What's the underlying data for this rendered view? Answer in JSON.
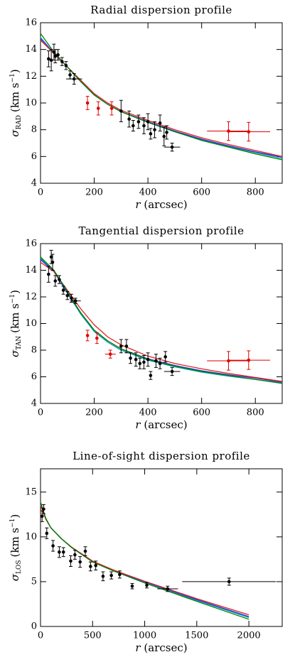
{
  "chart_data": [
    {
      "type": "scatter",
      "title": "Radial dispersion profile",
      "xlabel": {
        "symbol": "r",
        "unit": "(arcsec)"
      },
      "ylabel": {
        "symbol": "σ",
        "subscript": "RAD",
        "unit": "(km s",
        "exponent": "−1",
        "close": ")"
      },
      "xlim": [
        0,
        900
      ],
      "ylim": [
        4,
        16
      ],
      "xticks": [
        0,
        200,
        400,
        600,
        800
      ],
      "yticks": [
        4,
        6,
        8,
        10,
        12,
        14,
        16
      ],
      "series": [
        {
          "kind": "errorbar",
          "color": "#000000",
          "x": [
            30,
            40,
            50,
            55,
            65,
            80,
            95,
            110,
            125,
            300,
            330,
            345,
            365,
            385,
            400,
            410,
            425,
            445,
            460,
            470,
            490
          ],
          "values": [
            13.3,
            13.2,
            13.8,
            13.5,
            13.6,
            13.1,
            12.8,
            12.1,
            11.8,
            9.4,
            8.8,
            8.3,
            8.6,
            8.3,
            8.6,
            7.7,
            8.0,
            8.5,
            7.5,
            7.8,
            6.7
          ],
          "errors": [
            0.6,
            0.8,
            0.6,
            0.5,
            0.4,
            0.3,
            0.3,
            0.3,
            0.4,
            0.8,
            0.6,
            0.4,
            0.5,
            0.6,
            0.6,
            0.4,
            0.6,
            0.6,
            0.7,
            0.5,
            0.3
          ],
          "xerrors": [
            null,
            null,
            null,
            null,
            null,
            null,
            null,
            null,
            30,
            null,
            null,
            null,
            null,
            null,
            null,
            null,
            null,
            null,
            null,
            null,
            30
          ]
        },
        {
          "kind": "errorbar",
          "color": "#e00000",
          "x": [
            175,
            215,
            265,
            700,
            775
          ],
          "values": [
            10.0,
            9.6,
            9.6,
            7.9,
            7.85
          ],
          "errors": [
            0.5,
            0.5,
            0.5,
            0.7,
            0.7
          ],
          "xerrors": [
            null,
            null,
            null,
            80,
            80
          ]
        },
        {
          "kind": "line",
          "color": "#00a0b0",
          "x": [
            0,
            25,
            50,
            100,
            150,
            200,
            250,
            300,
            400,
            500,
            600,
            700,
            800,
            900
          ],
          "values": [
            14.9,
            14.3,
            13.7,
            12.7,
            11.6,
            10.6,
            9.9,
            9.35,
            8.55,
            7.85,
            7.25,
            6.75,
            6.3,
            5.85
          ]
        },
        {
          "kind": "line",
          "color": "#3030e0",
          "x": [
            0,
            25,
            50,
            100,
            150,
            200,
            250,
            300,
            400,
            500,
            600,
            700,
            800,
            900
          ],
          "values": [
            14.8,
            14.3,
            13.7,
            12.7,
            11.6,
            10.6,
            9.9,
            9.35,
            8.6,
            7.9,
            7.3,
            6.8,
            6.35,
            5.95
          ]
        },
        {
          "kind": "line",
          "color": "#e02020",
          "x": [
            0,
            25,
            50,
            100,
            150,
            200,
            250,
            300,
            400,
            500,
            600,
            700,
            800,
            900
          ],
          "values": [
            14.7,
            14.2,
            13.7,
            12.7,
            11.7,
            10.7,
            10.0,
            9.45,
            8.7,
            8.0,
            7.4,
            6.9,
            6.45,
            6.0
          ]
        },
        {
          "kind": "line",
          "color": "#008000",
          "x": [
            0,
            25,
            50,
            100,
            150,
            200,
            250,
            300,
            400,
            500,
            600,
            700,
            800,
            900
          ],
          "values": [
            15.2,
            14.5,
            13.8,
            12.7,
            11.6,
            10.6,
            9.9,
            9.35,
            8.55,
            7.85,
            7.2,
            6.7,
            6.2,
            5.75
          ]
        }
      ]
    },
    {
      "type": "scatter",
      "title": "Tangential dispersion profile",
      "xlabel": {
        "symbol": "r",
        "unit": "(arcsec)"
      },
      "ylabel": {
        "symbol": "σ",
        "subscript": "TAN",
        "unit": "(km s",
        "exponent": "−1",
        "close": ")"
      },
      "xlim": [
        0,
        900
      ],
      "ylim": [
        4,
        16
      ],
      "xticks": [
        0,
        200,
        400,
        600,
        800
      ],
      "yticks": [
        4,
        6,
        8,
        10,
        12,
        14,
        16
      ],
      "series": [
        {
          "kind": "errorbar",
          "color": "#000000",
          "x": [
            30,
            40,
            45,
            55,
            70,
            85,
            100,
            115,
            130,
            300,
            320,
            335,
            355,
            370,
            385,
            400,
            410,
            430,
            445,
            465,
            490
          ],
          "values": [
            13.7,
            15.0,
            14.6,
            13.2,
            13.3,
            12.5,
            12.1,
            11.9,
            11.7,
            8.3,
            8.3,
            7.4,
            7.3,
            7.0,
            7.1,
            7.3,
            6.1,
            7.2,
            7.0,
            7.5,
            6.4
          ],
          "errors": [
            0.6,
            0.5,
            0.6,
            0.4,
            0.3,
            0.3,
            0.3,
            0.3,
            0.2,
            0.5,
            0.5,
            0.4,
            0.5,
            0.4,
            0.5,
            0.5,
            0.3,
            0.5,
            0.4,
            0.4,
            0.3
          ],
          "xerrors": [
            null,
            null,
            null,
            null,
            null,
            null,
            null,
            null,
            20,
            null,
            null,
            null,
            null,
            null,
            null,
            null,
            null,
            null,
            null,
            null,
            30
          ]
        },
        {
          "kind": "errorbar",
          "color": "#e00000",
          "x": [
            175,
            210,
            260,
            700,
            775
          ],
          "values": [
            9.1,
            8.9,
            7.7,
            7.2,
            7.25
          ],
          "errors": [
            0.4,
            0.4,
            0.3,
            0.7,
            0.7
          ],
          "xerrors": [
            null,
            null,
            20,
            80,
            80
          ]
        },
        {
          "kind": "line",
          "color": "#00a0b0",
          "x": [
            0,
            50,
            100,
            150,
            200,
            250,
            300,
            400,
            500,
            600,
            700,
            800,
            900
          ],
          "values": [
            14.9,
            13.9,
            12.3,
            10.7,
            9.4,
            8.6,
            8.0,
            7.25,
            6.75,
            6.35,
            6.05,
            5.8,
            5.55
          ]
        },
        {
          "kind": "line",
          "color": "#3030e0",
          "x": [
            0,
            50,
            100,
            150,
            200,
            250,
            300,
            400,
            500,
            600,
            700,
            800,
            900
          ],
          "values": [
            14.8,
            13.9,
            12.3,
            10.8,
            9.5,
            8.7,
            8.1,
            7.35,
            6.85,
            6.45,
            6.15,
            5.9,
            5.6
          ]
        },
        {
          "kind": "line",
          "color": "#e02020",
          "x": [
            0,
            50,
            100,
            150,
            200,
            250,
            300,
            400,
            500,
            600,
            700,
            800,
            900
          ],
          "values": [
            14.6,
            13.9,
            12.5,
            11.1,
            9.9,
            9.0,
            8.4,
            7.55,
            7.0,
            6.6,
            6.25,
            5.95,
            5.65
          ]
        },
        {
          "kind": "line",
          "color": "#008000",
          "x": [
            0,
            50,
            100,
            150,
            200,
            250,
            300,
            400,
            500,
            600,
            700,
            800,
            900
          ],
          "values": [
            15.0,
            14.0,
            12.4,
            10.8,
            9.5,
            8.7,
            8.1,
            7.3,
            6.8,
            6.4,
            6.1,
            5.8,
            5.5
          ]
        }
      ]
    },
    {
      "type": "scatter",
      "title": "Line-of-sight dispersion profile",
      "xlabel": {
        "symbol": "r",
        "unit": "(arcsec)"
      },
      "ylabel": {
        "symbol": "σ",
        "subscript": "LOS",
        "unit": "(km s",
        "exponent": "−1",
        "close": ")"
      },
      "xlim": [
        0,
        2320
      ],
      "ylim": [
        0,
        17.6
      ],
      "xticks": [
        0,
        500,
        1000,
        1500,
        2000
      ],
      "yticks": [
        0,
        5,
        10,
        15
      ],
      "series": [
        {
          "kind": "errorbar",
          "color": "#000000",
          "x": [
            15,
            30,
            60,
            120,
            180,
            220,
            290,
            330,
            380,
            430,
            480,
            530,
            600,
            680,
            760,
            880,
            1020,
            1220,
            1810
          ],
          "values": [
            12.3,
            13.1,
            10.4,
            9.0,
            8.3,
            8.3,
            7.3,
            8.0,
            7.2,
            8.4,
            6.7,
            6.8,
            5.6,
            5.7,
            5.8,
            4.5,
            4.6,
            4.2,
            5.0
          ],
          "errors": [
            0.6,
            0.5,
            0.6,
            0.6,
            0.6,
            0.5,
            0.6,
            0.5,
            0.6,
            0.5,
            0.5,
            0.5,
            0.5,
            0.4,
            0.4,
            0.3,
            0.3,
            0.3,
            0.4
          ],
          "xerrors": [
            null,
            null,
            null,
            null,
            null,
            null,
            null,
            null,
            null,
            null,
            null,
            null,
            null,
            null,
            null,
            null,
            null,
            100,
            450
          ]
        },
        {
          "kind": "line",
          "color": "#00a0b0",
          "x": [
            0,
            50,
            100,
            200,
            300,
            500,
            700,
            1000,
            1500,
            2000
          ],
          "values": [
            13.6,
            12.0,
            11.0,
            9.8,
            8.8,
            7.2,
            6.2,
            4.9,
            2.9,
            1.0
          ]
        },
        {
          "kind": "line",
          "color": "#3030e0",
          "x": [
            0,
            50,
            100,
            200,
            300,
            500,
            700,
            1000,
            1500,
            2000
          ],
          "values": [
            13.6,
            12.0,
            11.0,
            9.8,
            8.8,
            7.25,
            6.25,
            5.0,
            3.0,
            1.1
          ]
        },
        {
          "kind": "line",
          "color": "#e02020",
          "x": [
            0,
            50,
            100,
            200,
            300,
            500,
            700,
            1000,
            1500,
            2000
          ],
          "values": [
            13.5,
            12.0,
            11.0,
            9.8,
            8.85,
            7.3,
            6.3,
            5.05,
            3.1,
            1.3
          ]
        },
        {
          "kind": "line",
          "color": "#008000",
          "x": [
            0,
            50,
            100,
            200,
            300,
            500,
            700,
            1000,
            1500,
            2000
          ],
          "values": [
            13.9,
            12.1,
            11.0,
            9.8,
            8.8,
            7.2,
            6.2,
            4.85,
            2.8,
            0.8
          ]
        }
      ]
    }
  ]
}
